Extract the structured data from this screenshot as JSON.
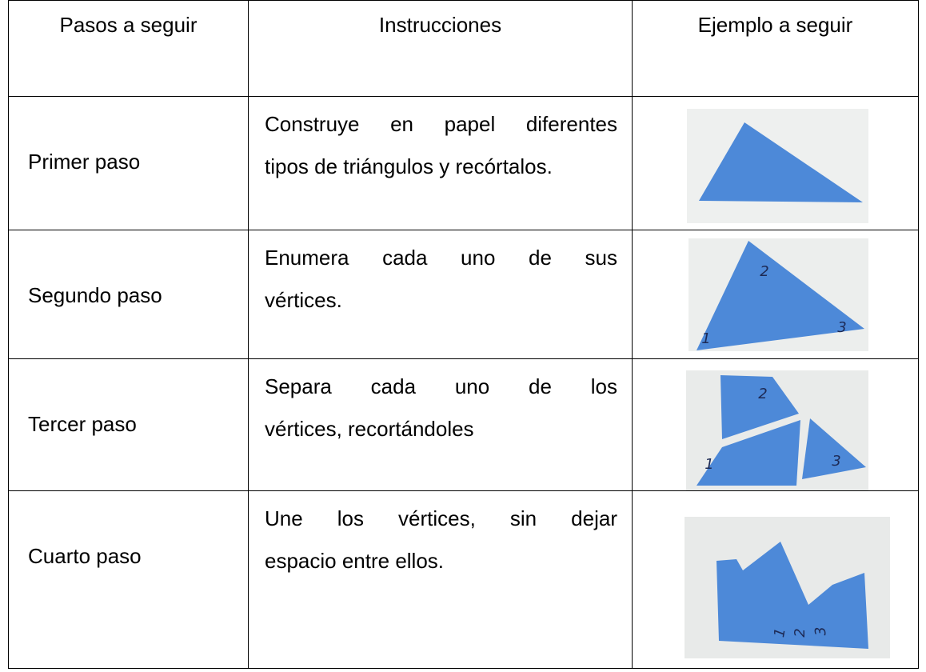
{
  "table": {
    "header": [
      "Pasos a seguir",
      "Instrucciones",
      "Ejemplo a seguir"
    ],
    "rows": [
      {
        "step": "Primer paso",
        "instructions": [
          "Construye en papel diferentes",
          "tipos de triángulos y recórtalos."
        ]
      },
      {
        "step": "Segundo paso",
        "instructions": [
          "Enumera cada uno de sus",
          "vértices."
        ]
      },
      {
        "step": "Tercer paso",
        "instructions": [
          "Separa cada uno de los",
          "vértices, recortándoles"
        ]
      },
      {
        "step": "Cuarto paso",
        "instructions": [
          "Une los vértices, sin dejar",
          "espacio entre ellos."
        ]
      }
    ],
    "vertex_labels": [
      "1",
      "2",
      "3"
    ]
  }
}
